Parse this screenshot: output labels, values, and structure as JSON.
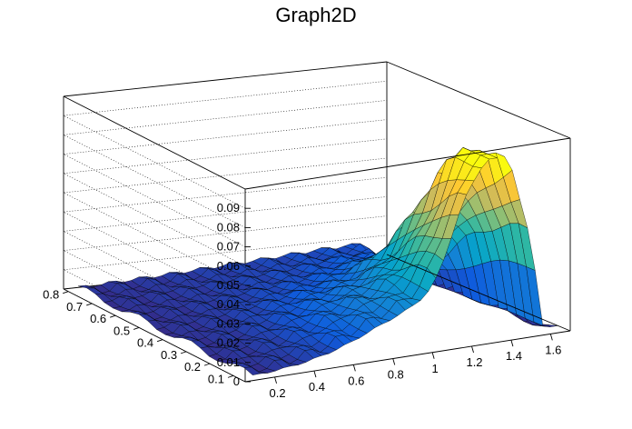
{
  "chart_data": {
    "type": "surface",
    "title": "Graph2D",
    "xlabel": "",
    "ylabel": "",
    "zlabel": "",
    "x_ticks": [
      "0.2",
      "0.4",
      "0.6",
      "0.8",
      "1",
      "1.2",
      "1.4",
      "1.6"
    ],
    "y_ticks": [
      "0.1",
      "0.2",
      "0.3",
      "0.4",
      "0.5",
      "0.6",
      "0.7",
      "0.8"
    ],
    "z_ticks": [
      "0",
      "0.01",
      "0.02",
      "0.03",
      "0.04",
      "0.05",
      "0.06",
      "0.07",
      "0.08",
      "0.09"
    ],
    "xlim": [
      0.05,
      1.7
    ],
    "ylim": [
      0.05,
      0.82
    ],
    "zlim": [
      0,
      0.1
    ],
    "colormap": [
      "#352a87",
      "#0f5cdd",
      "#1481d6",
      "#06a4ca",
      "#2eb7a4",
      "#87bf77",
      "#d1bb59",
      "#fec832",
      "#f9fb0e"
    ],
    "grid": true,
    "surface_note_values": {
      "peak_z": 0.091,
      "peak_x": 1.25,
      "peak_y": 0.05,
      "edge_x": 1.62
    }
  }
}
